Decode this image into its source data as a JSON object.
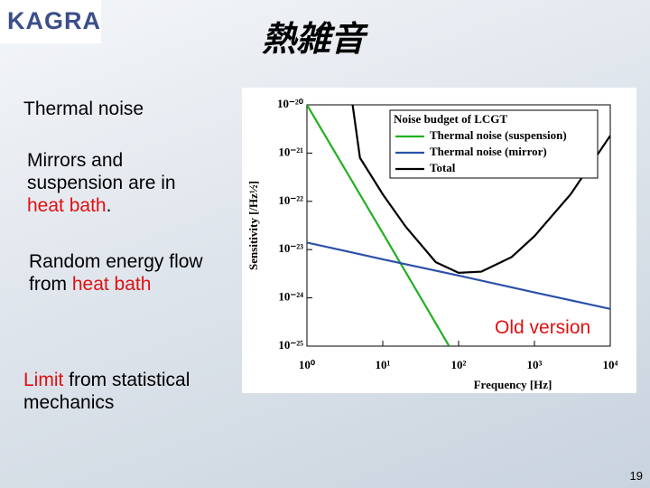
{
  "slide": {
    "logo": "KAGRA",
    "title": "熱雑音",
    "page_number": "19",
    "heading": "Thermal noise",
    "para1": [
      "Mirrors and suspension are in ",
      "heat bath",
      "."
    ],
    "para2": [
      "Random energy flow from ",
      "heat bath"
    ],
    "para3": [
      "Limit",
      " from statistical mechanics"
    ],
    "annotation": "Old version"
  },
  "chart_data": {
    "type": "line",
    "legend_title": "Noise budget of LCGT",
    "xlabel": "Frequency [Hz]",
    "ylabel": "Sensitivity [/Hz½]",
    "xscale": "log",
    "yscale": "log",
    "legend": "upper right",
    "xlim": [
      1,
      10000
    ],
    "ylim": [
      1e-25,
      1e-20
    ],
    "xticks": [
      {
        "value": 1,
        "label": "10⁰"
      },
      {
        "value": 10,
        "label": "10¹"
      },
      {
        "value": 100,
        "label": "10²"
      },
      {
        "value": 1000,
        "label": "10³"
      },
      {
        "value": 10000,
        "label": "10⁴"
      }
    ],
    "yticks": [
      {
        "value": 1e-25,
        "label": "10⁻²⁵"
      },
      {
        "value": 1e-24,
        "label": "10⁻²⁴"
      },
      {
        "value": 1e-23,
        "label": "10⁻²³"
      },
      {
        "value": 1e-22,
        "label": "10⁻²²"
      },
      {
        "value": 1e-21,
        "label": "10⁻²¹"
      },
      {
        "value": 1e-20,
        "label": "10⁻²⁰"
      }
    ],
    "series": [
      {
        "name": "Thermal noise (suspension)",
        "color": "#22b022",
        "x": [
          1,
          10,
          75
        ],
        "values": [
          1e-20,
          2.2e-23,
          1e-25
        ]
      },
      {
        "name": "Thermal noise (mirror)",
        "color": "#2a50a8",
        "x": [
          1,
          10,
          100,
          1000,
          10000
        ],
        "values": [
          1.4e-23,
          6.3e-24,
          2.9e-24,
          1.3e-24,
          5.9e-25
        ]
      },
      {
        "name": "Total",
        "color": "#000000",
        "x": [
          4,
          5,
          10,
          20,
          50,
          100,
          200,
          500,
          1000,
          3000,
          10000
        ],
        "values": [
          1e-20,
          8e-22,
          1.4e-22,
          3e-23,
          5.5e-24,
          3.3e-24,
          3.5e-24,
          7e-24,
          1.9e-23,
          1.4e-22,
          2.3e-21
        ]
      }
    ]
  }
}
